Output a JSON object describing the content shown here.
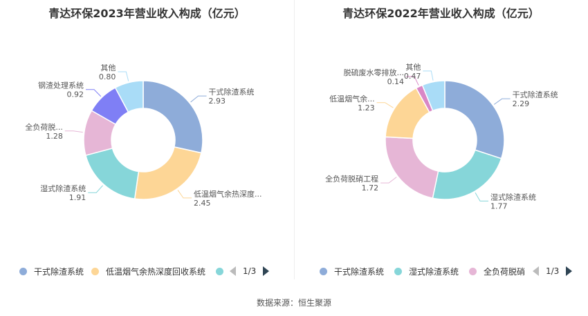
{
  "chart_data": [
    {
      "type": "pie",
      "title": "青达环保2023年营业收入构成（亿元）",
      "categories": [
        "干式除渣系统",
        "低温烟气余热深度回收系统",
        "湿式除渣系统",
        "全负荷脱硝工程",
        "钢渣处理系统",
        "其他"
      ],
      "labels": [
        "干式除渣系统",
        "低温烟气余热深度...",
        "湿式除渣系统",
        "全负荷脱...",
        "钢渣处理系统",
        "其他"
      ],
      "values": [
        2.93,
        2.45,
        1.91,
        1.28,
        0.92,
        0.8
      ],
      "colors": [
        "#8eacd9",
        "#fdd696",
        "#86d6d9",
        "#e6b6d6",
        "#7f7ff5",
        "#a9dcf7"
      ],
      "legend": {
        "items": [
          "干式除渣系统",
          "低温烟气余热深度回收系统",
          ""
        ],
        "colors": [
          "#8eacd9",
          "#fdd696",
          "#86d6d9"
        ],
        "page": "1/3"
      }
    },
    {
      "type": "pie",
      "title": "青达环保2022年营业收入构成（亿元）",
      "categories": [
        "干式除渣系统",
        "湿式除渣系统",
        "全负荷脱硝工程",
        "低温烟气余热深度回收系统",
        "脱硫废水零排放",
        "其他"
      ],
      "labels": [
        "干式除渣系统",
        "湿式除渣系统",
        "全负荷脱硝工程",
        "低温烟气余...",
        "脱硫废水零排放...",
        "其他"
      ],
      "values": [
        2.29,
        1.77,
        1.72,
        1.23,
        0.14,
        0.47
      ],
      "colors": [
        "#8eacd9",
        "#86d6d9",
        "#e6b6d6",
        "#fdd696",
        "#d987c6",
        "#a9dcf7"
      ],
      "legend": {
        "items": [
          "干式除渣系统",
          "湿式除渣系统",
          "全负荷脱硝"
        ],
        "colors": [
          "#8eacd9",
          "#86d6d9",
          "#e6b6d6"
        ],
        "page": "1/3"
      }
    }
  ],
  "footer": {
    "source": "数据来源：恒生聚源"
  }
}
